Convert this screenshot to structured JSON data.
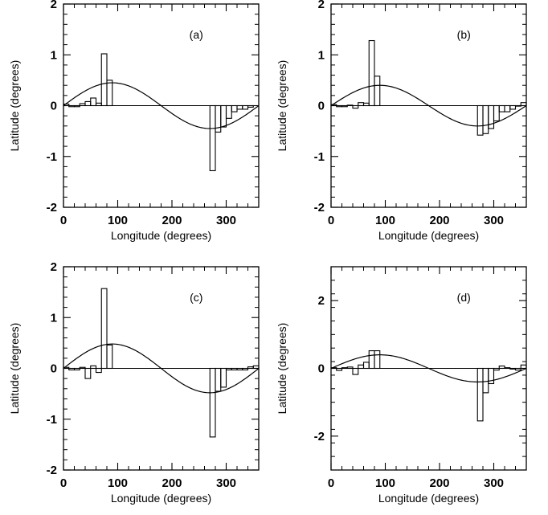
{
  "chart_data": [
    {
      "type": "line",
      "panel_label": "(a)",
      "xlabel": "Longitude (degrees)",
      "ylabel": "Latitude (degrees)",
      "xlim": [
        0,
        360
      ],
      "ylim": [
        -2,
        2
      ],
      "xticks": [
        0,
        100,
        200,
        300
      ],
      "yticks": [
        -2,
        -1,
        0,
        1,
        2
      ],
      "xtick_labels": [
        "0",
        "100",
        "200",
        "300"
      ],
      "ytick_labels": [
        "-2",
        "-1",
        "0",
        "1",
        "2"
      ],
      "curve": {
        "kind": "sine",
        "amplitude": 0.45,
        "period": 360
      },
      "histogram": {
        "bin_edges": [
          0,
          10,
          20,
          30,
          40,
          50,
          60,
          70,
          80,
          90,
          270,
          280,
          290,
          300,
          310,
          320,
          330,
          340,
          350,
          360
        ],
        "values": [
          0.03,
          -0.02,
          -0.02,
          0.04,
          0.08,
          0.15,
          0.05,
          1.02,
          0.5,
          0,
          -1.28,
          -0.52,
          -0.42,
          -0.25,
          -0.12,
          -0.07,
          -0.07,
          -0.03,
          0
        ]
      }
    },
    {
      "type": "line",
      "panel_label": "(b)",
      "xlabel": "Longitude (degrees)",
      "ylabel": "Latitude (degrees)",
      "xlim": [
        0,
        360
      ],
      "ylim": [
        -2,
        2
      ],
      "xticks": [
        0,
        100,
        200,
        300
      ],
      "yticks": [
        -2,
        -1,
        0,
        1,
        2
      ],
      "xtick_labels": [
        "0",
        "100",
        "200",
        "300"
      ],
      "ytick_labels": [
        "-2",
        "-1",
        "0",
        "1",
        "2"
      ],
      "curve": {
        "kind": "sine",
        "amplitude": 0.4,
        "period": 360
      },
      "histogram": {
        "bin_edges": [
          0,
          10,
          20,
          30,
          40,
          50,
          60,
          70,
          80,
          90,
          270,
          280,
          290,
          300,
          310,
          320,
          330,
          340,
          350,
          360
        ],
        "values": [
          0.02,
          -0.02,
          -0.02,
          0.01,
          -0.05,
          0.06,
          0.05,
          1.28,
          0.58,
          0,
          -0.58,
          -0.55,
          -0.45,
          -0.3,
          -0.12,
          -0.12,
          -0.07,
          -0.01,
          0.06
        ]
      }
    },
    {
      "type": "line",
      "panel_label": "(c)",
      "xlabel": "Longitude (degrees)",
      "ylabel": "Latitude (degrees)",
      "xlim": [
        0,
        360
      ],
      "ylim": [
        -2,
        2
      ],
      "xticks": [
        0,
        100,
        200,
        300
      ],
      "yticks": [
        -2,
        -1,
        0,
        1,
        2
      ],
      "xtick_labels": [
        "0",
        "100",
        "200",
        "300"
      ],
      "ytick_labels": [
        "-2",
        "-1",
        "0",
        "1",
        "2"
      ],
      "curve": {
        "kind": "sine",
        "amplitude": 0.48,
        "period": 360
      },
      "histogram": {
        "bin_edges": [
          0,
          10,
          20,
          30,
          40,
          50,
          60,
          70,
          80,
          90,
          270,
          280,
          290,
          300,
          310,
          320,
          330,
          340,
          350,
          360
        ],
        "values": [
          0.02,
          -0.03,
          -0.03,
          0.02,
          -0.2,
          0.05,
          -0.08,
          1.57,
          0.46,
          0,
          -1.35,
          -0.45,
          -0.37,
          -0.03,
          -0.03,
          -0.03,
          -0.03,
          0.03,
          0.05
        ]
      }
    },
    {
      "type": "line",
      "panel_label": "(d)",
      "xlabel": "Longitude (degrees)",
      "ylabel": "Latitude (degrees)",
      "xlim": [
        0,
        360
      ],
      "ylim": [
        -3,
        3
      ],
      "xticks": [
        0,
        100,
        200,
        300
      ],
      "yticks": [
        -2,
        0,
        2
      ],
      "xtick_labels": [
        "0",
        "100",
        "200",
        "300"
      ],
      "ytick_labels": [
        "-2",
        "0",
        "2"
      ],
      "curve": {
        "kind": "sine",
        "amplitude": 0.4,
        "period": 360
      },
      "histogram": {
        "bin_edges": [
          0,
          10,
          20,
          30,
          40,
          50,
          60,
          70,
          80,
          90,
          270,
          280,
          290,
          300,
          310,
          320,
          330,
          340,
          350,
          360
        ],
        "values": [
          0.02,
          -0.06,
          0.02,
          0.04,
          -0.18,
          0.1,
          0.18,
          0.52,
          0.52,
          0,
          -1.55,
          -0.72,
          -0.45,
          -0.05,
          0.07,
          0.02,
          -0.02,
          -0.05,
          0.1
        ]
      }
    }
  ]
}
